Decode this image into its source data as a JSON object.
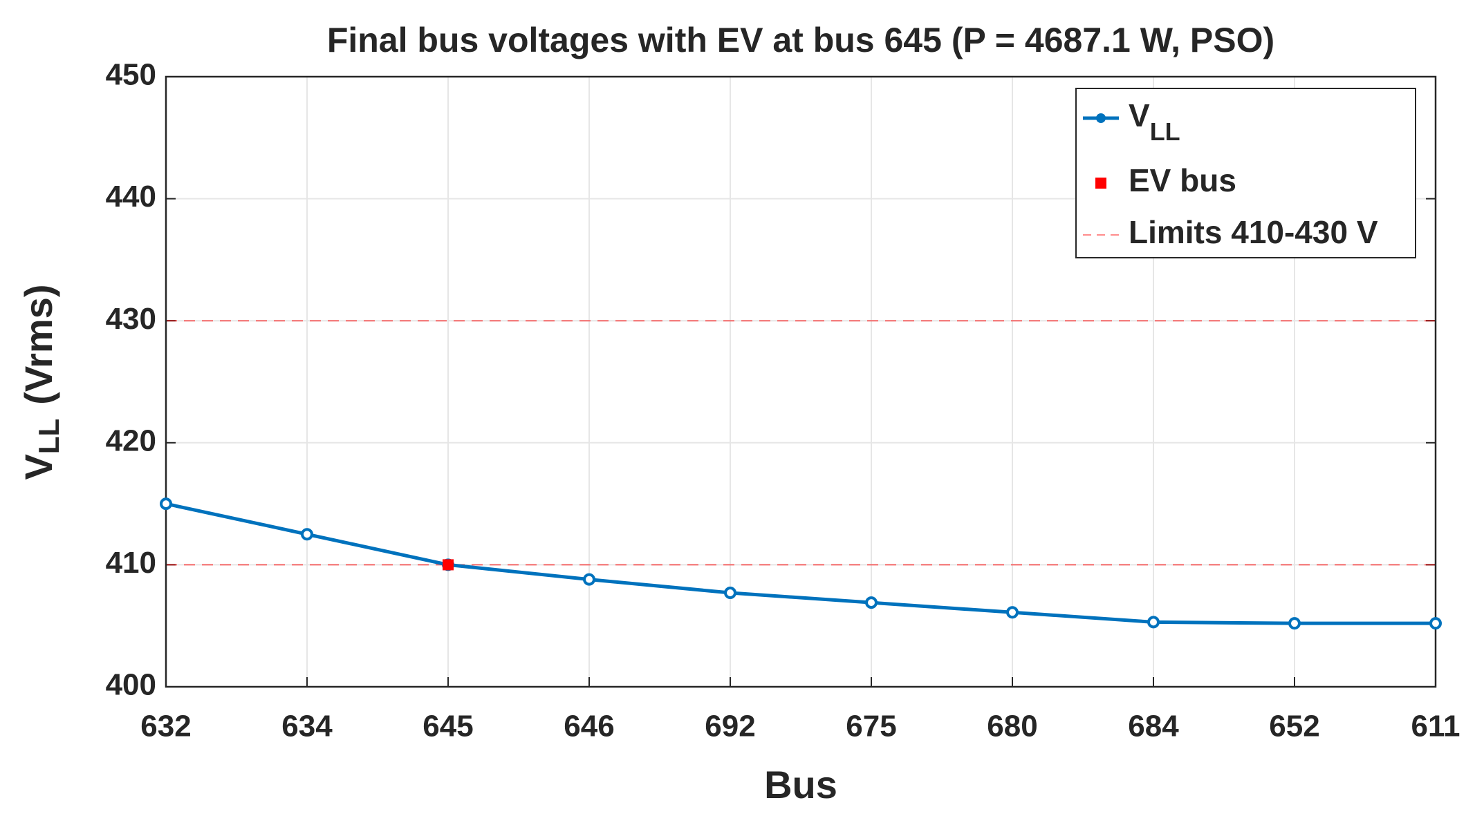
{
  "chart_data": {
    "type": "line",
    "title": "Final bus voltages with EV at bus 645 (P = 4687.1 W, PSO)",
    "xlabel": "Bus",
    "ylabel": {
      "main": "V",
      "sub": "LL",
      "unit": "(Vrms)"
    },
    "categories": [
      "632",
      "634",
      "645",
      "646",
      "692",
      "675",
      "680",
      "684",
      "652",
      "611"
    ],
    "series": [
      {
        "name": "V",
        "name_sub": "LL",
        "color": "#0072bd",
        "marker": "circle",
        "values": [
          415.0,
          412.5,
          410.0,
          408.8,
          407.7,
          406.9,
          406.1,
          405.3,
          405.2,
          405.2
        ]
      },
      {
        "name": "EV bus",
        "color": "#ff0000",
        "marker": "square",
        "line": false,
        "values": [
          null,
          null,
          410.0,
          null,
          null,
          null,
          null,
          null,
          null,
          null
        ]
      }
    ],
    "limits": {
      "name": "Limits 410-430 V",
      "values": [
        410,
        430
      ],
      "color": "#ff0000"
    },
    "ylim": [
      400,
      450
    ],
    "yticks": [
      400,
      410,
      420,
      430,
      440,
      450
    ],
    "grid": true,
    "legend": "top-right"
  }
}
